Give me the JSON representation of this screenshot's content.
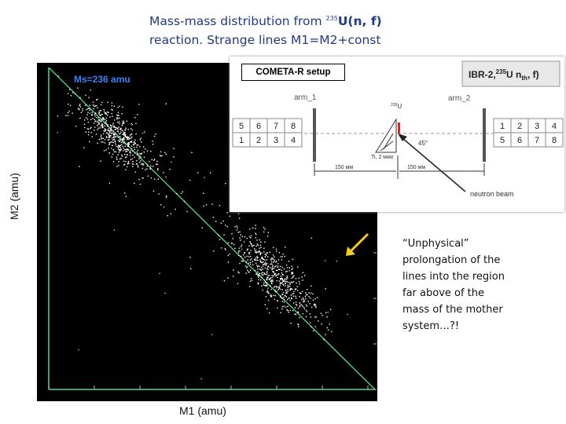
{
  "title": {
    "line1_prefix": "Mass-mass distribution from ",
    "sup": "235",
    "line1_element": "U(n, f)",
    "line2": "reaction. Strange lines M1=M2+const"
  },
  "plot": {
    "ylabel": "M2 (amu)",
    "xlabel": "M1 (amu)",
    "ms_label": "Ms=236 amu"
  },
  "inset": {
    "label": "COMETA-R setup",
    "ibr_label": "IBR-2,",
    "ibr_sup": "235",
    "ibr_rest": "U n",
    "ibr_sub": "th",
    "ibr_end": ", f)",
    "arm1": "arm_1",
    "arm2": "arm_2",
    "left_table": [
      [
        "5",
        "6",
        "7",
        "8"
      ],
      [
        "1",
        "2",
        "3",
        "4"
      ]
    ],
    "right_table": [
      [
        "1",
        "2",
        "3",
        "4"
      ],
      [
        "5",
        "6",
        "7",
        "8"
      ]
    ],
    "target_label": "Ti, 2 мкм",
    "u_label": "U",
    "u_sup": "235",
    "angle": "45°",
    "dist_left": "150 мм",
    "dist_right": "150 мм",
    "beam": "neutron beam"
  },
  "note": {
    "text_lines": [
      "“Unphysical”",
      "prolongation of the",
      "lines into the region",
      "far above of the",
      "mass of  the mother",
      "system…?!"
    ]
  },
  "colors": {
    "title": "#1f3a8a",
    "diagonal": "#4ade80",
    "ms_label": "#3b82f6",
    "arrow": "#facc15",
    "dots": "#ffffff"
  }
}
